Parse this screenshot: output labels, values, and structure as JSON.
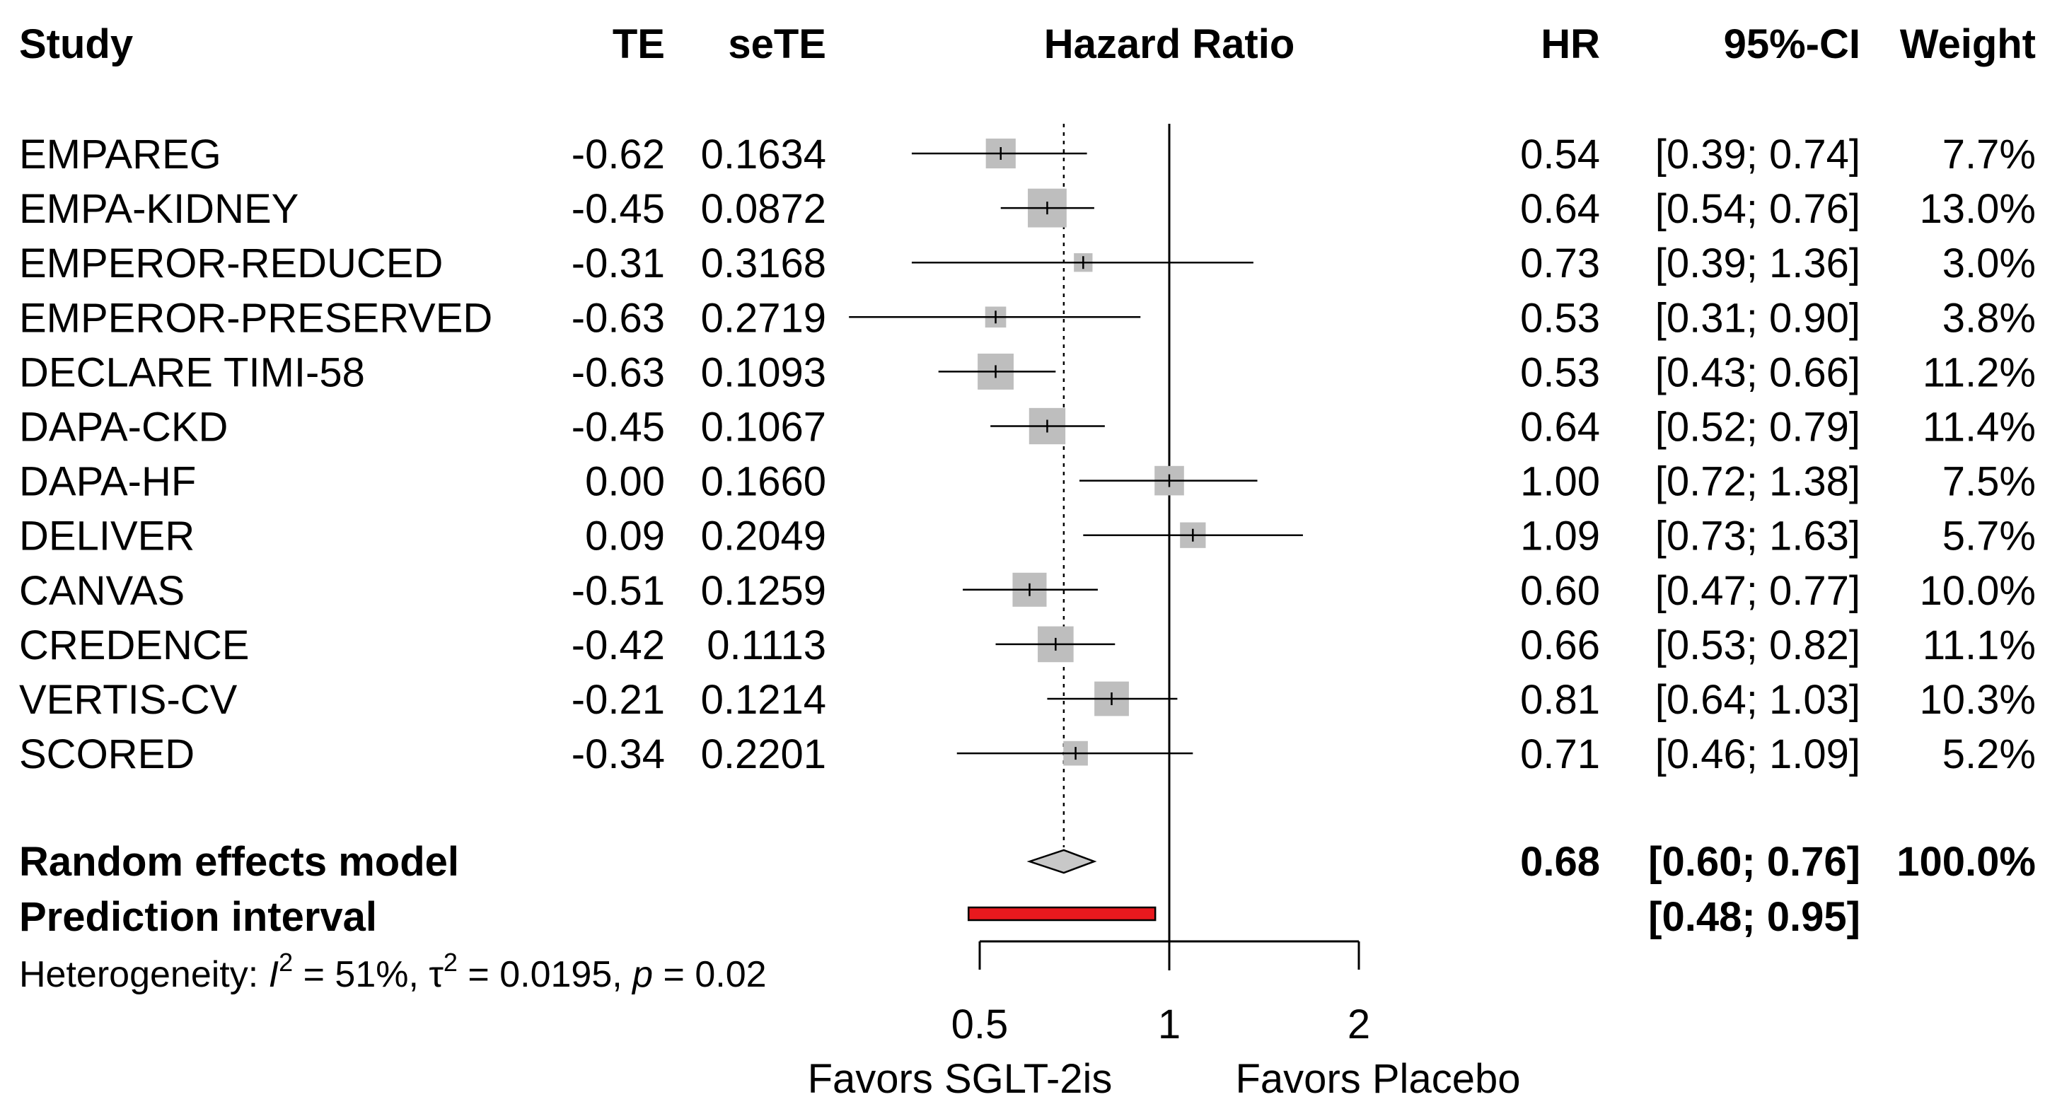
{
  "chart_data": {
    "type": "forest",
    "effect_measure": "Hazard Ratio",
    "x_scale": "log",
    "xlim": [
      0.5,
      2
    ],
    "x_ticks": [
      "0.5",
      "1",
      "2"
    ],
    "reference_line": 1,
    "columns": {
      "study": "Study",
      "te": "TE",
      "sete": "seTE",
      "plot": "Hazard Ratio",
      "hr": "HR",
      "ci": "95%-CI",
      "weight": "Weight"
    },
    "studies": [
      {
        "name": "EMPAREG",
        "te": "-0.62",
        "sete": "0.1634",
        "hr": 0.54,
        "lower": 0.39,
        "upper": 0.74,
        "hr_text": "0.54",
        "ci_text": "[0.39; 0.74]",
        "weight": 7.7,
        "weight_text": "7.7%"
      },
      {
        "name": "EMPA-KIDNEY",
        "te": "-0.45",
        "sete": "0.0872",
        "hr": 0.64,
        "lower": 0.54,
        "upper": 0.76,
        "hr_text": "0.64",
        "ci_text": "[0.54; 0.76]",
        "weight": 13.0,
        "weight_text": "13.0%"
      },
      {
        "name": "EMPEROR-REDUCED",
        "te": "-0.31",
        "sete": "0.3168",
        "hr": 0.73,
        "lower": 0.39,
        "upper": 1.36,
        "hr_text": "0.73",
        "ci_text": "[0.39; 1.36]",
        "weight": 3.0,
        "weight_text": "3.0%"
      },
      {
        "name": "EMPEROR-PRESERVED",
        "te": "-0.63",
        "sete": "0.2719",
        "hr": 0.53,
        "lower": 0.31,
        "upper": 0.9,
        "hr_text": "0.53",
        "ci_text": "[0.31; 0.90]",
        "weight": 3.8,
        "weight_text": "3.8%"
      },
      {
        "name": "DECLARE TIMI-58",
        "te": "-0.63",
        "sete": "0.1093",
        "hr": 0.53,
        "lower": 0.43,
        "upper": 0.66,
        "hr_text": "0.53",
        "ci_text": "[0.43; 0.66]",
        "weight": 11.2,
        "weight_text": "11.2%"
      },
      {
        "name": "DAPA-CKD",
        "te": "-0.45",
        "sete": "0.1067",
        "hr": 0.64,
        "lower": 0.52,
        "upper": 0.79,
        "hr_text": "0.64",
        "ci_text": "[0.52; 0.79]",
        "weight": 11.4,
        "weight_text": "11.4%"
      },
      {
        "name": "DAPA-HF",
        "te": "0.00",
        "sete": "0.1660",
        "hr": 1.0,
        "lower": 0.72,
        "upper": 1.38,
        "hr_text": "1.00",
        "ci_text": "[0.72; 1.38]",
        "weight": 7.5,
        "weight_text": "7.5%"
      },
      {
        "name": "DELIVER",
        "te": "0.09",
        "sete": "0.2049",
        "hr": 1.09,
        "lower": 0.73,
        "upper": 1.63,
        "hr_text": "1.09",
        "ci_text": "[0.73; 1.63]",
        "weight": 5.7,
        "weight_text": "5.7%"
      },
      {
        "name": "CANVAS",
        "te": "-0.51",
        "sete": "0.1259",
        "hr": 0.6,
        "lower": 0.47,
        "upper": 0.77,
        "hr_text": "0.60",
        "ci_text": "[0.47; 0.77]",
        "weight": 10.0,
        "weight_text": "10.0%"
      },
      {
        "name": "CREDENCE",
        "te": "-0.42",
        "sete": "0.1113",
        "hr": 0.66,
        "lower": 0.53,
        "upper": 0.82,
        "hr_text": "0.66",
        "ci_text": "[0.53; 0.82]",
        "weight": 11.1,
        "weight_text": "11.1%"
      },
      {
        "name": "VERTIS-CV",
        "te": "-0.21",
        "sete": "0.1214",
        "hr": 0.81,
        "lower": 0.64,
        "upper": 1.03,
        "hr_text": "0.81",
        "ci_text": "[0.64; 1.03]",
        "weight": 10.3,
        "weight_text": "10.3%"
      },
      {
        "name": "SCORED",
        "te": "-0.34",
        "sete": "0.2201",
        "hr": 0.71,
        "lower": 0.46,
        "upper": 1.09,
        "hr_text": "0.71",
        "ci_text": "[0.46; 1.09]",
        "weight": 5.2,
        "weight_text": "5.2%"
      }
    ],
    "random_effects": {
      "label": "Random effects model",
      "hr": 0.68,
      "lower": 0.6,
      "upper": 0.76,
      "hr_text": "0.68",
      "ci_text": "[0.60; 0.76]",
      "weight_text": "100.0%"
    },
    "prediction_interval": {
      "label": "Prediction interval",
      "lower": 0.48,
      "upper": 0.95,
      "ci_text": "[0.48; 0.95]"
    },
    "heterogeneity": {
      "prefix": "Heterogeneity: ",
      "i2_symbol": "I",
      "i2_value": " = 51%, ",
      "tau2_symbol": "τ",
      "tau2_value": " = 0.0195, ",
      "p_symbol": "p",
      "p_value": " = 0.02"
    },
    "favors_left": "Favors SGLT-2is",
    "favors_right": "Favors Placebo",
    "colors": {
      "box": "#bebebe",
      "diamond": "#c8c8c8",
      "prediction": "#e8191e",
      "line": "#000000"
    }
  }
}
